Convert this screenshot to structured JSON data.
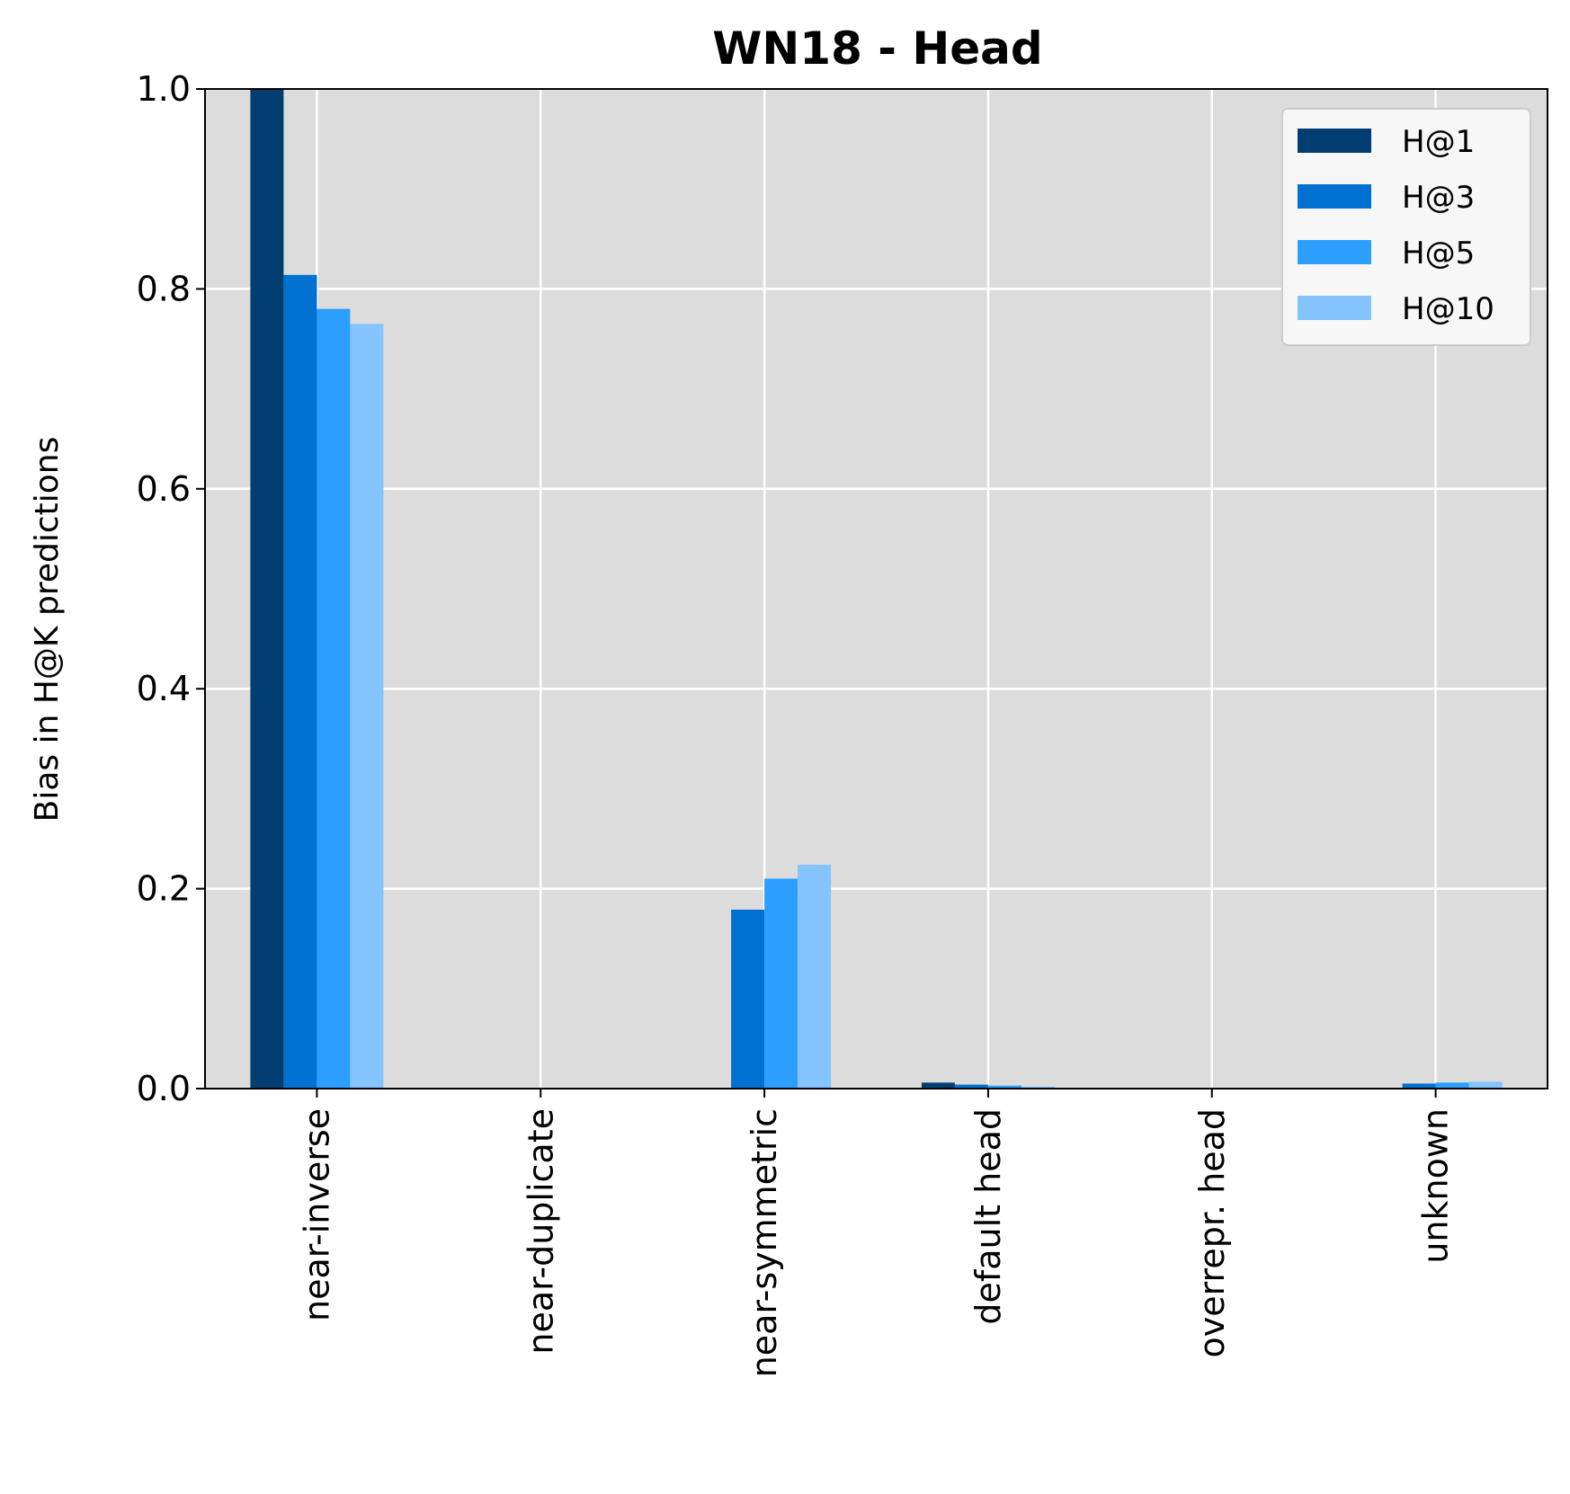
{
  "chart_data": {
    "type": "bar",
    "title": "WN18 - Head",
    "xlabel": "",
    "ylabel": "Bias in H@K predictions",
    "categories": [
      "near-inverse",
      "near-duplicate",
      "near-symmetric",
      "default head",
      "overrepr. head",
      "unknown"
    ],
    "series": [
      {
        "name": "H@1",
        "color": "#033e73",
        "values": [
          1.0,
          0.0,
          0.0,
          0.006,
          0.0,
          0.0
        ]
      },
      {
        "name": "H@3",
        "color": "#0070d1",
        "values": [
          0.814,
          0.0,
          0.179,
          0.004,
          0.0,
          0.005
        ]
      },
      {
        "name": "H@5",
        "color": "#2c9efe",
        "values": [
          0.78,
          0.0,
          0.21,
          0.003,
          0.0,
          0.006
        ]
      },
      {
        "name": "H@10",
        "color": "#85c4fe",
        "values": [
          0.765,
          0.0,
          0.224,
          0.002,
          0.0,
          0.007
        ]
      }
    ],
    "ylim": [
      0,
      1.0
    ],
    "yticks": [
      "0.0",
      "0.2",
      "0.4",
      "0.6",
      "0.8",
      "1.0"
    ],
    "grid": true,
    "legend_position": "top-right",
    "plot_background": "#dcdcdc",
    "grid_color": "#ffffff"
  }
}
